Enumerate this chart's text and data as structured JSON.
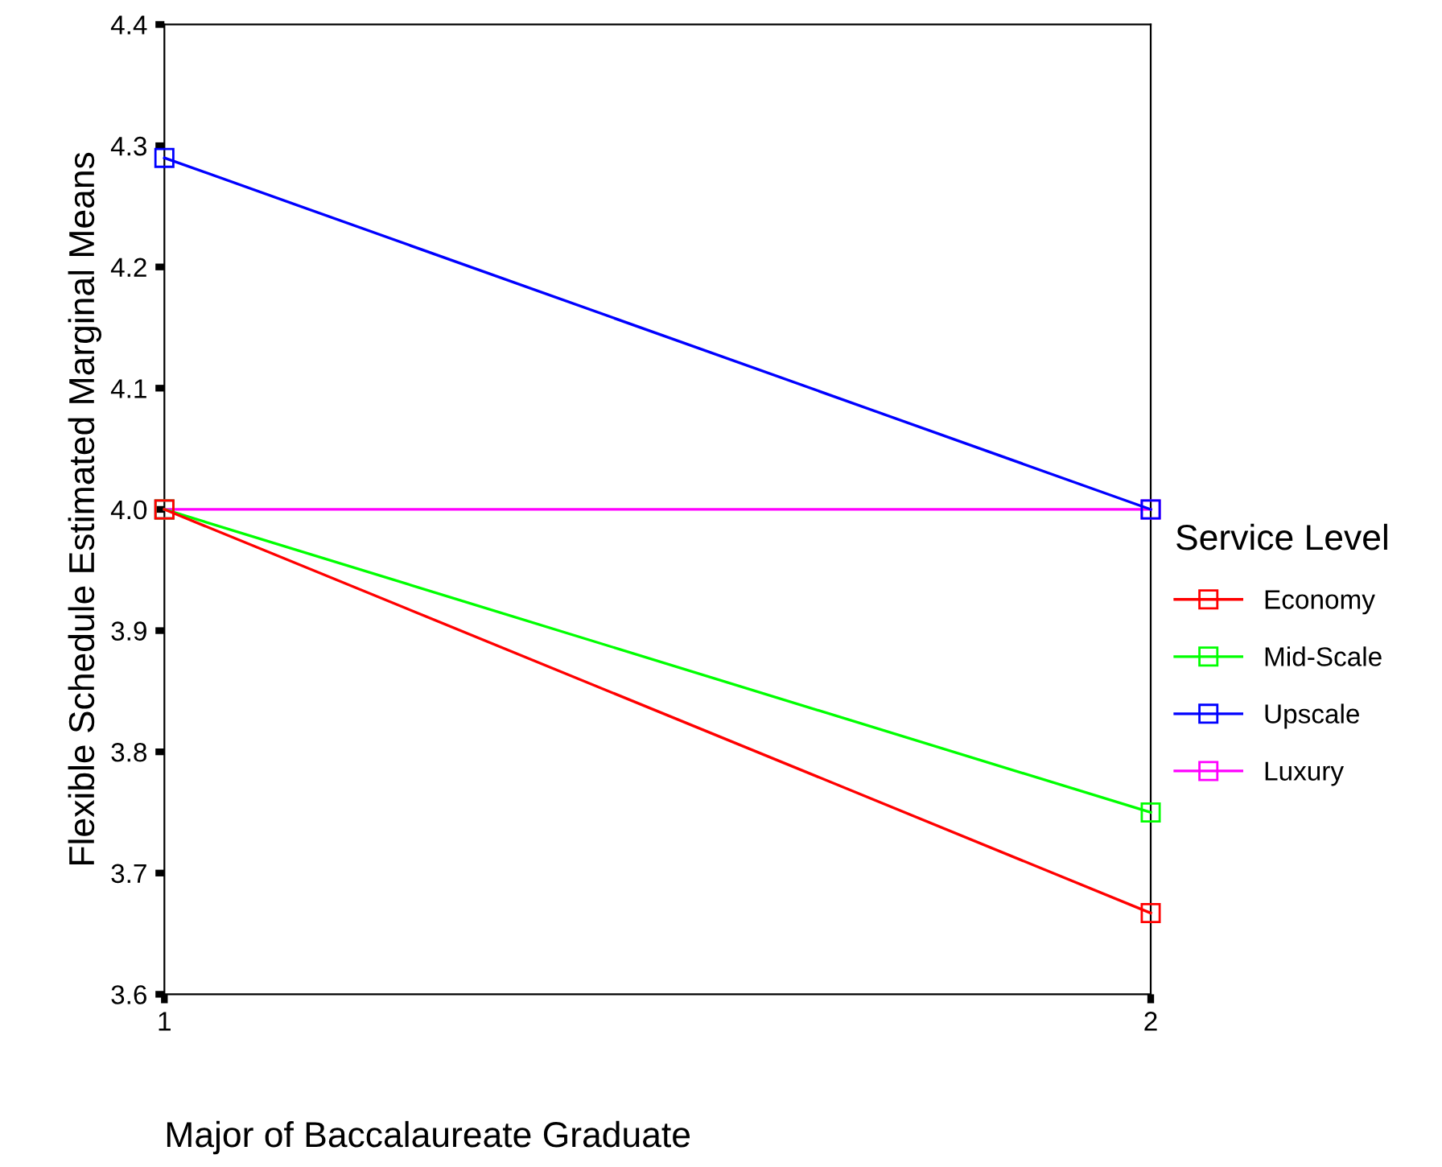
{
  "chart_data": {
    "type": "line",
    "xlabel": "Major of Baccalaureate Graduate",
    "ylabel": "Flexible Schedule Estimated Marginal Means",
    "legend_title": "Service Level",
    "x": [
      1,
      2
    ],
    "xlim": [
      1,
      2
    ],
    "xticks": [
      1,
      2
    ],
    "ylim": [
      3.6,
      4.4
    ],
    "yticks": [
      3.6,
      3.7,
      3.8,
      3.9,
      {
        "value": 4.0,
        "label": "4.0"
      },
      4.1,
      4.2,
      4.3,
      4.4
    ],
    "series": [
      {
        "name": "Economy",
        "color": "#ff0000",
        "values": [
          4.0,
          3.667
        ]
      },
      {
        "name": "Mid-Scale",
        "color": "#00ff00",
        "values": [
          4.0,
          3.75
        ]
      },
      {
        "name": "Upscale",
        "color": "#0000ff",
        "values": [
          4.29,
          4.0
        ]
      },
      {
        "name": "Luxury",
        "color": "#ff00ff",
        "values": [
          4.0,
          4.0
        ]
      }
    ],
    "marker": "square",
    "line_style": "solid",
    "grid": false,
    "legend": "right"
  }
}
